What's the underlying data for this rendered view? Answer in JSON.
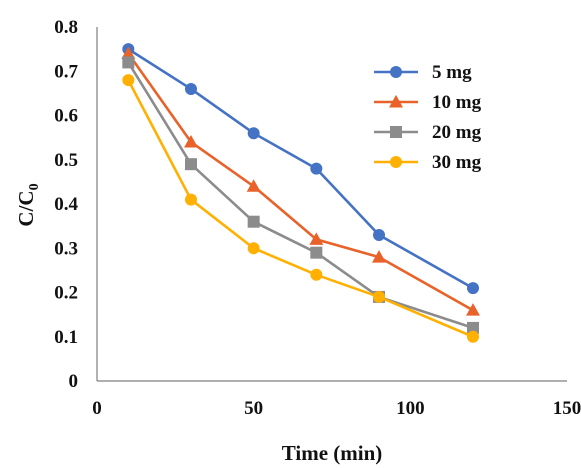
{
  "chart_data": {
    "type": "line",
    "title": "",
    "xlabel": "Time (min)",
    "ylabel_main": "C/C",
    "ylabel_sub": "0",
    "xlim": [
      0,
      150
    ],
    "ylim": [
      0,
      0.8
    ],
    "xticks": [
      0,
      50,
      100,
      150
    ],
    "yticks": [
      0,
      0.1,
      0.2,
      0.3,
      0.4,
      0.5,
      0.6,
      0.7,
      0.8
    ],
    "grid": false,
    "legend_position": "top-right",
    "x": [
      10,
      30,
      50,
      70,
      90,
      120
    ],
    "series": [
      {
        "name": "5 mg",
        "color": "#4472C4",
        "marker": "circle",
        "values": [
          0.75,
          0.66,
          0.56,
          0.48,
          0.33,
          0.21
        ]
      },
      {
        "name": "10 mg",
        "color": "#E8622A",
        "marker": "triangle",
        "values": [
          0.74,
          0.54,
          0.44,
          0.32,
          0.28,
          0.16
        ]
      },
      {
        "name": "20 mg",
        "color": "#8C8C8C",
        "marker": "square",
        "values": [
          0.72,
          0.49,
          0.36,
          0.29,
          0.19,
          0.12
        ]
      },
      {
        "name": "30 mg",
        "color": "#FFB000",
        "marker": "circle",
        "values": [
          0.68,
          0.41,
          0.3,
          0.24,
          0.19,
          0.1
        ]
      }
    ]
  }
}
